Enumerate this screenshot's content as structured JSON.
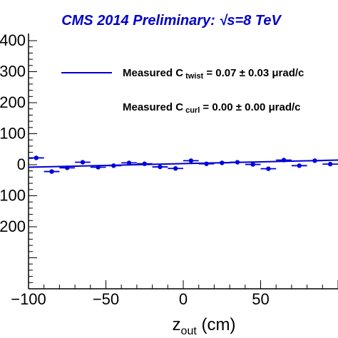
{
  "chart_data": {
    "type": "scatter",
    "title": "CMS 2014 Preliminary: √s=8 TeV",
    "title_color": "#0000cc",
    "xlabel": "z_out (cm)",
    "xlabel_main": "z",
    "xlabel_sub": "out",
    "xlabel_unit": "(cm)",
    "ylabel": "",
    "xlim": [
      -100,
      100
    ],
    "ylim": [
      -400,
      400
    ],
    "x_ticks": [
      -100,
      -50,
      0,
      50
    ],
    "y_tick_labels": [
      "400",
      "300",
      "200",
      "100",
      "0",
      "100",
      "200"
    ],
    "y_tick_values": [
      400,
      300,
      200,
      100,
      0,
      -100,
      -200
    ],
    "marker_color": "#0000dd",
    "fit_color": "#0000cc",
    "series": [
      {
        "x": [
          -95,
          -85,
          -75,
          -65,
          -55,
          -45,
          -35,
          -25,
          -15,
          -5,
          5,
          15,
          25,
          35,
          45,
          55,
          65,
          75,
          85,
          95
        ],
        "y": [
          22,
          -22,
          -10,
          8,
          -8,
          -3,
          6,
          3,
          -7,
          -12,
          13,
          3,
          6,
          8,
          1,
          -13,
          15,
          -3,
          13,
          2
        ],
        "xerr": 5
      }
    ],
    "fit_line": {
      "x": [
        -100,
        100
      ],
      "y": [
        -8,
        15
      ]
    },
    "legend": [
      {
        "prefix": "Measured C",
        "sub": "twist",
        "suffix": " = 0.07 ± 0.03 μrad/c"
      },
      {
        "prefix": "Measured C",
        "sub": "curl",
        "suffix": " = 0.00 ± 0.00 μrad/c"
      }
    ],
    "legend_placement": "top"
  }
}
